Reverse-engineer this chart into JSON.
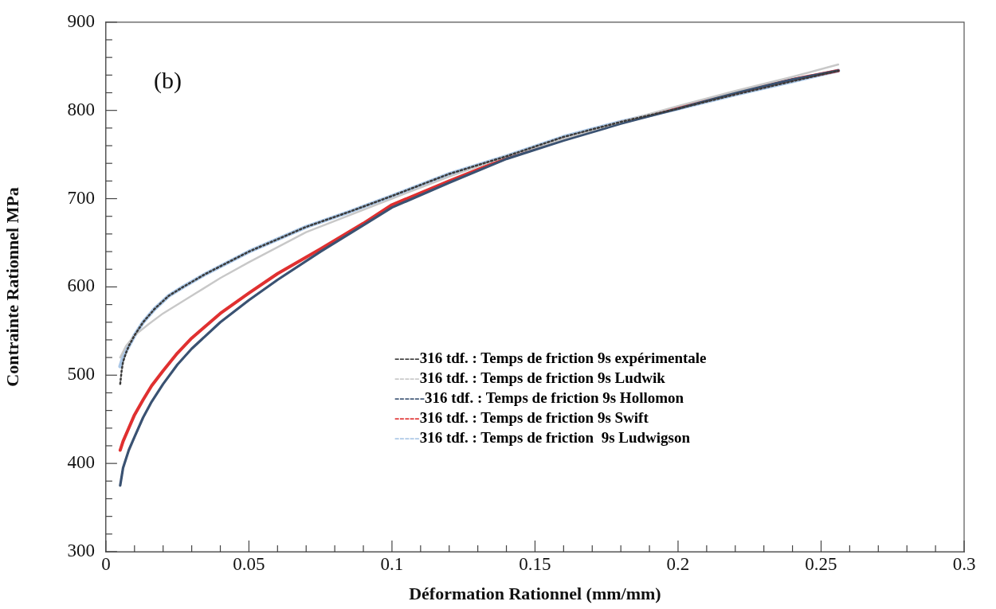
{
  "chart_data": {
    "type": "line",
    "xlabel": "Déformation Rationnel (mm/mm)",
    "ylabel": "Contrainte Rationnel MPa",
    "annotations": [
      "(b)"
    ],
    "xlim": [
      0,
      0.3
    ],
    "ylim": [
      300,
      900
    ],
    "xticks": [
      0,
      {
        "value": 0.01,
        "label": null
      },
      {
        "value": 0.02,
        "label": null
      },
      {
        "value": 0.03,
        "label": null
      },
      {
        "value": 0.04,
        "label": null
      },
      0.05,
      {
        "value": 0.06,
        "label": null
      },
      {
        "value": 0.07,
        "label": null
      },
      {
        "value": 0.08,
        "label": null
      },
      {
        "value": 0.09,
        "label": null
      },
      0.1,
      {
        "value": 0.11,
        "label": null
      },
      {
        "value": 0.12,
        "label": null
      },
      {
        "value": 0.13,
        "label": null
      },
      {
        "value": 0.14,
        "label": null
      },
      0.15,
      {
        "value": 0.16,
        "label": null
      },
      {
        "value": 0.17,
        "label": null
      },
      {
        "value": 0.18,
        "label": null
      },
      {
        "value": 0.19,
        "label": null
      },
      0.2,
      {
        "value": 0.21,
        "label": null
      },
      {
        "value": 0.22,
        "label": null
      },
      {
        "value": 0.23,
        "label": null
      },
      {
        "value": 0.24,
        "label": null
      },
      0.25,
      {
        "value": 0.26,
        "label": null
      },
      {
        "value": 0.27,
        "label": null
      },
      {
        "value": 0.28,
        "label": null
      },
      {
        "value": 0.29,
        "label": null
      },
      0.3
    ],
    "yticks": [
      300,
      {
        "value": 320,
        "label": null
      },
      {
        "value": 340,
        "label": null
      },
      {
        "value": 360,
        "label": null
      },
      {
        "value": 380,
        "label": null
      },
      400,
      {
        "value": 420,
        "label": null
      },
      {
        "value": 440,
        "label": null
      },
      {
        "value": 460,
        "label": null
      },
      {
        "value": 480,
        "label": null
      },
      500,
      {
        "value": 520,
        "label": null
      },
      {
        "value": 540,
        "label": null
      },
      {
        "value": 560,
        "label": null
      },
      {
        "value": 580,
        "label": null
      },
      600,
      {
        "value": 620,
        "label": null
      },
      {
        "value": 640,
        "label": null
      },
      {
        "value": 660,
        "label": null
      },
      {
        "value": 680,
        "label": null
      },
      700,
      {
        "value": 720,
        "label": null
      },
      {
        "value": 740,
        "label": null
      },
      {
        "value": 760,
        "label": null
      },
      {
        "value": 780,
        "label": null
      },
      800,
      {
        "value": 820,
        "label": null
      },
      {
        "value": 840,
        "label": null
      },
      {
        "value": 860,
        "label": null
      },
      {
        "value": 880,
        "label": null
      },
      900
    ],
    "grid": false,
    "legend": "right",
    "marker": "none",
    "series": [
      {
        "name": "-----316 tdf. : Temps de friction 9s expérimentale",
        "color": "#3a3a3a",
        "line_style": "dotted",
        "x": [
          0.005,
          0.0055,
          0.006,
          0.007,
          0.008,
          0.01,
          0.013,
          0.017,
          0.022,
          0.027,
          0.035,
          0.05,
          0.07,
          0.085,
          0.1,
          0.12,
          0.14,
          0.16,
          0.18,
          0.2,
          0.22,
          0.24,
          0.256
        ],
        "values": [
          490,
          505,
          515,
          525,
          533,
          545,
          560,
          575,
          590,
          600,
          615,
          640,
          668,
          685,
          703,
          728,
          748,
          770,
          787,
          802,
          818,
          833,
          845
        ]
      },
      {
        "name": "-----316 tdf. : Temps de friction 9s Ludwik",
        "color": "#c8c8c8",
        "line_style": "solid",
        "x": [
          0.005,
          0.007,
          0.01,
          0.015,
          0.02,
          0.03,
          0.04,
          0.05,
          0.07,
          0.1,
          0.12,
          0.14,
          0.16,
          0.18,
          0.2,
          0.22,
          0.24,
          0.256
        ],
        "values": [
          520,
          533,
          545,
          558,
          570,
          590,
          610,
          628,
          662,
          700,
          725,
          748,
          768,
          787,
          805,
          822,
          838,
          852
        ]
      },
      {
        "name": "------316 tdf. : Temps de friction 9s Hollomon",
        "color": "#3a5272",
        "line_style": "solid",
        "x": [
          0.005,
          0.006,
          0.008,
          0.01,
          0.013,
          0.016,
          0.02,
          0.025,
          0.03,
          0.04,
          0.05,
          0.06,
          0.075,
          0.09,
          0.1,
          0.12,
          0.14,
          0.16,
          0.18,
          0.2,
          0.22,
          0.24,
          0.256
        ],
        "values": [
          375,
          395,
          415,
          430,
          452,
          470,
          490,
          512,
          530,
          560,
          585,
          608,
          640,
          670,
          690,
          718,
          745,
          766,
          785,
          802,
          820,
          835,
          845
        ]
      },
      {
        "name": "-----316 tdf. : Temps de friction 9s Swift",
        "color": "#e03030",
        "line_style": "solid",
        "x": [
          0.005,
          0.006,
          0.008,
          0.01,
          0.013,
          0.016,
          0.02,
          0.025,
          0.03,
          0.04,
          0.05,
          0.06,
          0.075,
          0.09,
          0.1,
          0.12,
          0.14,
          0.16,
          0.18,
          0.2,
          0.22,
          0.24,
          0.256
        ],
        "values": [
          415,
          425,
          440,
          455,
          472,
          488,
          505,
          525,
          542,
          570,
          593,
          615,
          643,
          672,
          693,
          720,
          746,
          767,
          786,
          803,
          820,
          835,
          845
        ]
      },
      {
        "name": "-----316 tdf. : Temps de friction  9s Ludwigson",
        "color": "#a9c6e6",
        "line_style": "solid",
        "x": [
          0.005,
          0.006,
          0.007,
          0.008,
          0.01,
          0.013,
          0.017,
          0.022,
          0.027,
          0.035,
          0.05,
          0.07,
          0.085,
          0.1,
          0.12,
          0.14,
          0.16,
          0.18,
          0.2,
          0.22,
          0.24,
          0.256
        ],
        "values": [
          510,
          520,
          527,
          533,
          545,
          560,
          575,
          590,
          600,
          615,
          640,
          668,
          685,
          703,
          728,
          748,
          770,
          787,
          802,
          818,
          833,
          845
        ]
      }
    ]
  }
}
